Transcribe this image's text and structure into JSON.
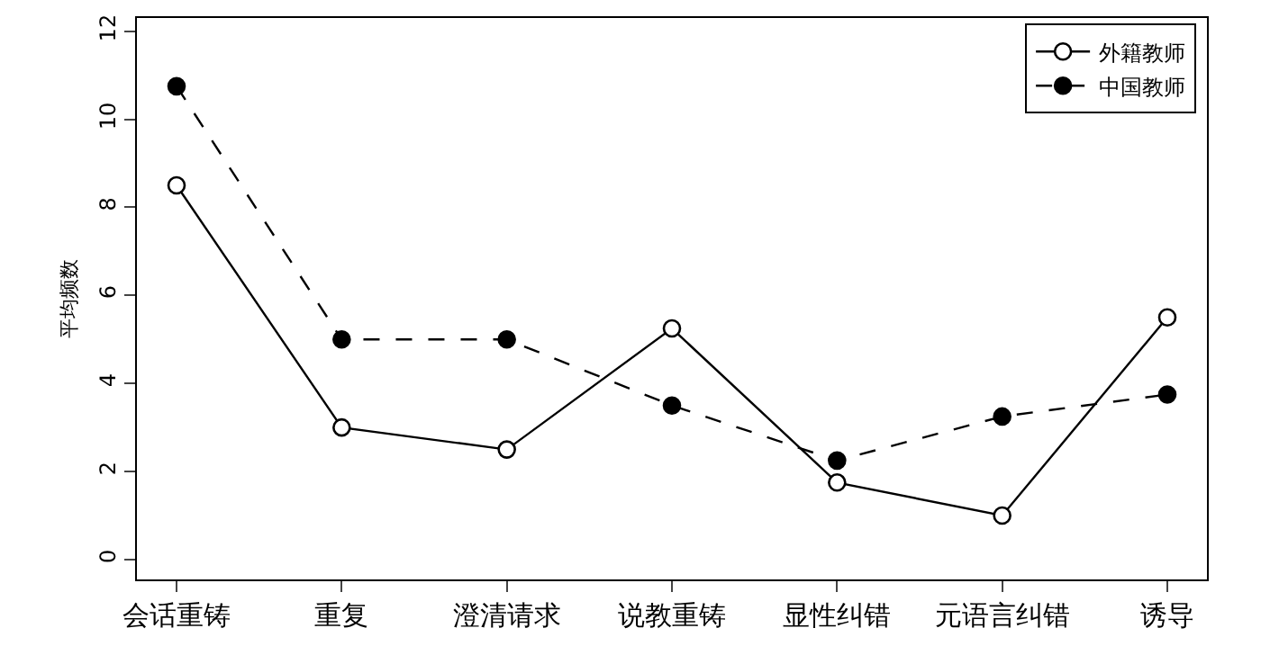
{
  "chart_data": {
    "type": "line",
    "ylabel": "平均频数",
    "categories": [
      "会话重铸",
      "重复",
      "澄清请求",
      "说教重铸",
      "显性纠错",
      "元语言纠错",
      "诱导"
    ],
    "series": [
      {
        "name": "外籍教师",
        "color": "#000000",
        "line_style": "solid",
        "values": [
          8.5,
          3,
          2.5,
          5.25,
          1.75,
          1,
          5.5
        ]
      },
      {
        "name": "中国教师",
        "color": "#000000",
        "line_style": "dashed",
        "values": [
          10.75,
          5,
          5,
          3.5,
          2.25,
          3.25,
          3.75
        ]
      }
    ],
    "ylim": [
      -0.45,
      12.3
    ],
    "yticks": [
      0,
      2,
      4,
      6,
      8,
      10,
      12
    ],
    "grid": false,
    "legend": "top right",
    "marker": "circle"
  }
}
